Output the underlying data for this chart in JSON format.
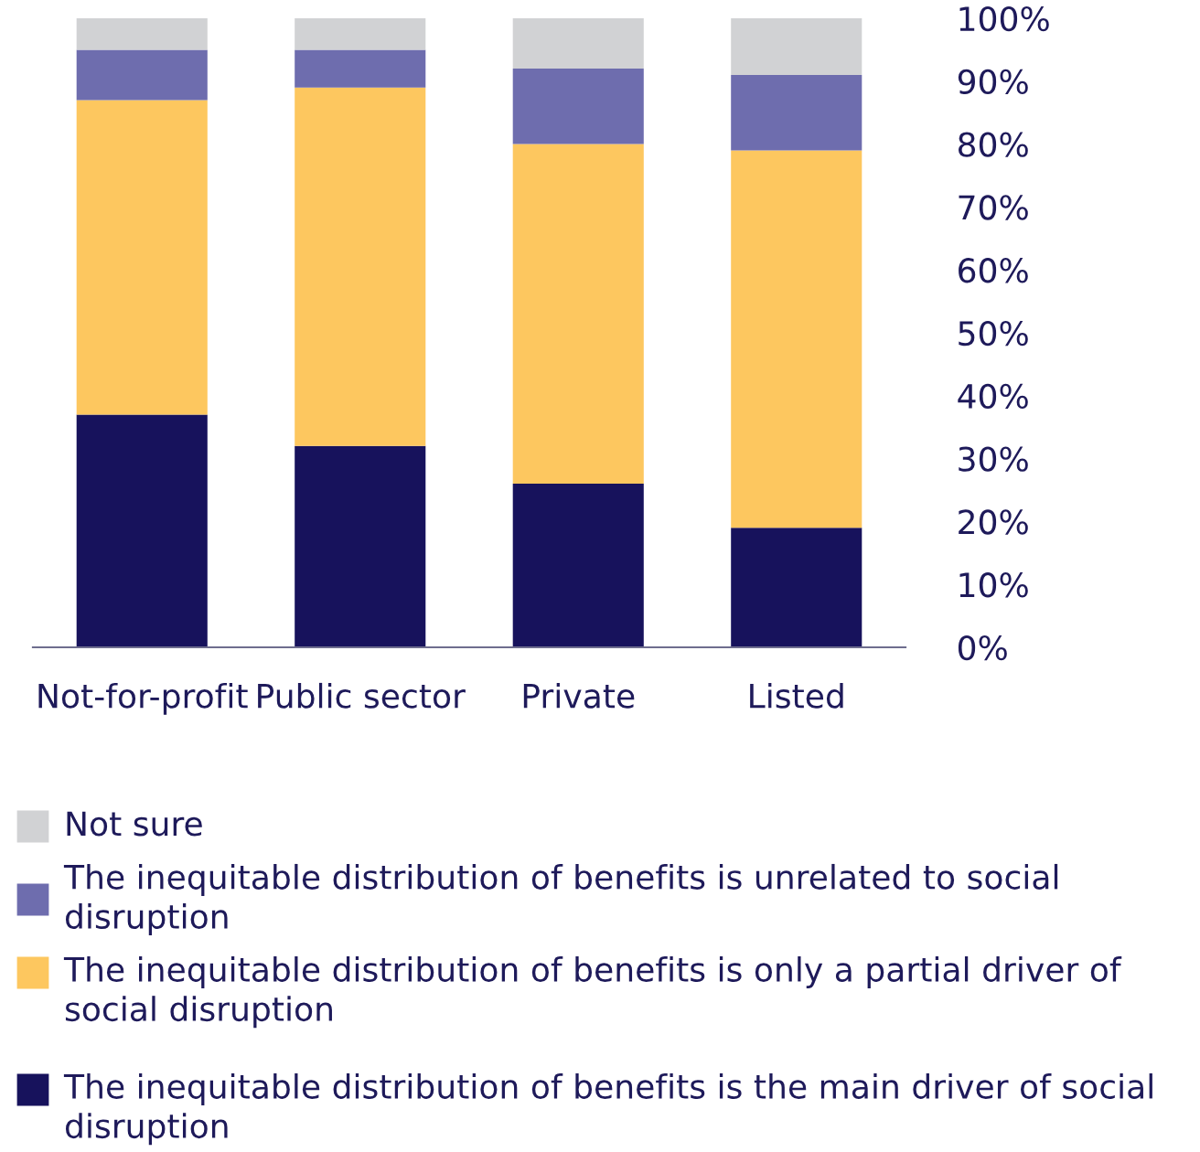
{
  "chart_data": {
    "type": "bar",
    "stacked": true,
    "categories": [
      "Not-for-profit",
      "Public sector",
      "Private",
      "Listed"
    ],
    "series": [
      {
        "name": "The inequitable distribution of benefits is the main driver of social disruption",
        "color": "#17125c",
        "values": [
          37,
          32,
          26,
          19
        ]
      },
      {
        "name": "The inequitable distribution of benefits is only a partial driver of social disruption",
        "color": "#fdc75f",
        "values": [
          50,
          57,
          54,
          60
        ]
      },
      {
        "name": "The inequitable distribution of benefits is unrelated to social disruption",
        "color": "#6e6dae",
        "values": [
          8,
          6,
          12,
          12
        ]
      },
      {
        "name": "Not sure",
        "color": "#d1d2d4",
        "values": [
          5,
          5,
          8,
          9
        ]
      }
    ],
    "ylim": [
      0,
      100
    ],
    "yticks": [
      {
        "value": 0,
        "label": "0%"
      },
      {
        "value": 10,
        "label": "10%"
      },
      {
        "value": 20,
        "label": "20%"
      },
      {
        "value": 30,
        "label": "30%"
      },
      {
        "value": 40,
        "label": "40%"
      },
      {
        "value": 50,
        "label": "50%"
      },
      {
        "value": 60,
        "label": "60%"
      },
      {
        "value": 70,
        "label": "70%"
      },
      {
        "value": 80,
        "label": "80%"
      },
      {
        "value": 90,
        "label": "90%"
      },
      {
        "value": 100,
        "label": "100%"
      }
    ],
    "grid": false,
    "legend": "bottom"
  }
}
